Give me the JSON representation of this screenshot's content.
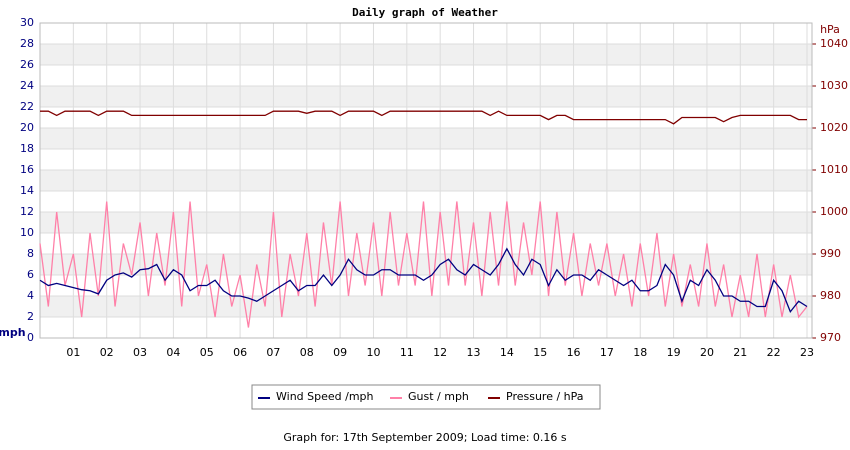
{
  "chart_data": {
    "type": "line",
    "title": "Daily graph of Weather",
    "y_unit": "mph",
    "y2_unit": "hPa",
    "footer": "Graph for: 17th September 2009; Load time: 0.16 s",
    "xlim": [
      0,
      23.15
    ],
    "xticks": [
      {
        "value": 1,
        "label": "01"
      },
      {
        "value": 2,
        "label": "02"
      },
      {
        "value": 3,
        "label": "03"
      },
      {
        "value": 4,
        "label": "04"
      },
      {
        "value": 5,
        "label": "05"
      },
      {
        "value": 6,
        "label": "06"
      },
      {
        "value": 7,
        "label": "07"
      },
      {
        "value": 8,
        "label": "08"
      },
      {
        "value": 9,
        "label": "09"
      },
      10,
      11,
      12,
      13,
      14,
      15,
      16,
      17,
      18,
      19,
      20,
      21,
      22,
      23
    ],
    "ylim": [
      0,
      30
    ],
    "yticks": [
      0,
      2,
      4,
      6,
      8,
      10,
      12,
      14,
      16,
      18,
      20,
      22,
      24,
      26,
      28,
      30
    ],
    "y2lim": [
      970,
      1045
    ],
    "y2ticks": [
      970,
      980,
      990,
      1000,
      1010,
      1020,
      1030,
      1040
    ],
    "grid": true,
    "x": [
      0,
      0.25,
      0.5,
      0.75,
      1,
      1.25,
      1.5,
      1.75,
      2,
      2.25,
      2.5,
      2.75,
      3,
      3.25,
      3.5,
      3.75,
      4,
      4.25,
      4.5,
      4.75,
      5,
      5.25,
      5.5,
      5.75,
      6,
      6.25,
      6.5,
      6.75,
      7,
      7.25,
      7.5,
      7.75,
      8,
      8.25,
      8.5,
      8.75,
      9,
      9.25,
      9.5,
      9.75,
      10,
      10.25,
      10.5,
      10.75,
      11,
      11.25,
      11.5,
      11.75,
      12,
      12.25,
      12.5,
      12.75,
      13,
      13.25,
      13.5,
      13.75,
      14,
      14.25,
      14.5,
      14.75,
      15,
      15.25,
      15.5,
      15.75,
      16,
      16.25,
      16.5,
      16.75,
      17,
      17.25,
      17.5,
      17.75,
      18,
      18.25,
      18.5,
      18.75,
      19,
      19.25,
      19.5,
      19.75,
      20,
      20.25,
      20.5,
      20.75,
      21,
      21.25,
      21.5,
      21.75,
      22,
      22.25,
      22.5,
      22.75,
      23
    ],
    "series": [
      {
        "name": "Gust / mph",
        "color": "#ff80a8",
        "axis": "y",
        "values": [
          9,
          3,
          12,
          5,
          8,
          2,
          10,
          4,
          13,
          3,
          9,
          6,
          11,
          4,
          10,
          5,
          12,
          3,
          13,
          4,
          7,
          2,
          8,
          3,
          6,
          1,
          7,
          3,
          12,
          2,
          8,
          4,
          10,
          3,
          11,
          5,
          13,
          4,
          10,
          5,
          11,
          4,
          12,
          5,
          10,
          5,
          13,
          4,
          12,
          5,
          13,
          5,
          11,
          4,
          12,
          5,
          13,
          5,
          11,
          6,
          13,
          4,
          12,
          5,
          10,
          4,
          9,
          5,
          9,
          4,
          8,
          3,
          9,
          4,
          10,
          3,
          8,
          3,
          7,
          3,
          9,
          3,
          7,
          2,
          6,
          2,
          8,
          2,
          7,
          2,
          6,
          2,
          3
        ]
      },
      {
        "name": "Wind Speed /mph",
        "color": "#000080",
        "axis": "y",
        "values": [
          5.5,
          5,
          5.2,
          5,
          4.8,
          4.6,
          4.5,
          4.2,
          5.5,
          6,
          6.2,
          5.8,
          6.5,
          6.6,
          7,
          5.5,
          6.5,
          6,
          4.5,
          5,
          5,
          5.5,
          4.5,
          4,
          4,
          3.8,
          3.5,
          4,
          4.5,
          5,
          5.5,
          4.5,
          5,
          5,
          6,
          5,
          6,
          7.5,
          6.5,
          6,
          6,
          6.5,
          6.5,
          6,
          6,
          6,
          5.5,
          6,
          7,
          7.5,
          6.5,
          6,
          7,
          6.5,
          6,
          7,
          8.5,
          7,
          6,
          7.5,
          7,
          5,
          6.5,
          5.5,
          6,
          6,
          5.5,
          6.5,
          6,
          5.5,
          5,
          5.5,
          4.5,
          4.5,
          5,
          7,
          6,
          3.5,
          5.5,
          5,
          6.5,
          5.5,
          4,
          4,
          3.5,
          3.5,
          3,
          3,
          5.5,
          4.5,
          2.5,
          3.5,
          3
        ]
      },
      {
        "name": "Pressure / hPa",
        "color": "#800000",
        "axis": "y2",
        "values": [
          1024,
          1024,
          1023,
          1024,
          1024,
          1024,
          1024,
          1023,
          1024,
          1024,
          1024,
          1023,
          1023,
          1023,
          1023,
          1023,
          1023,
          1023,
          1023,
          1023,
          1023,
          1023,
          1023,
          1023,
          1023,
          1023,
          1023,
          1023,
          1024,
          1024,
          1024,
          1024,
          1023.5,
          1024,
          1024,
          1024,
          1023,
          1024,
          1024,
          1024,
          1024,
          1023,
          1024,
          1024,
          1024,
          1024,
          1024,
          1024,
          1024,
          1024,
          1024,
          1024,
          1024,
          1024,
          1023,
          1024,
          1023,
          1023,
          1023,
          1023,
          1023,
          1022,
          1023,
          1023,
          1022,
          1022,
          1022,
          1022,
          1022,
          1022,
          1022,
          1022,
          1022,
          1022,
          1022,
          1022,
          1021,
          1022.5,
          1022.5,
          1022.5,
          1022.5,
          1022.5,
          1021.5,
          1022.5,
          1023,
          1023,
          1023,
          1023,
          1023,
          1023,
          1023,
          1022,
          1022
        ]
      }
    ],
    "legend_order": [
      1,
      0,
      2
    ]
  }
}
